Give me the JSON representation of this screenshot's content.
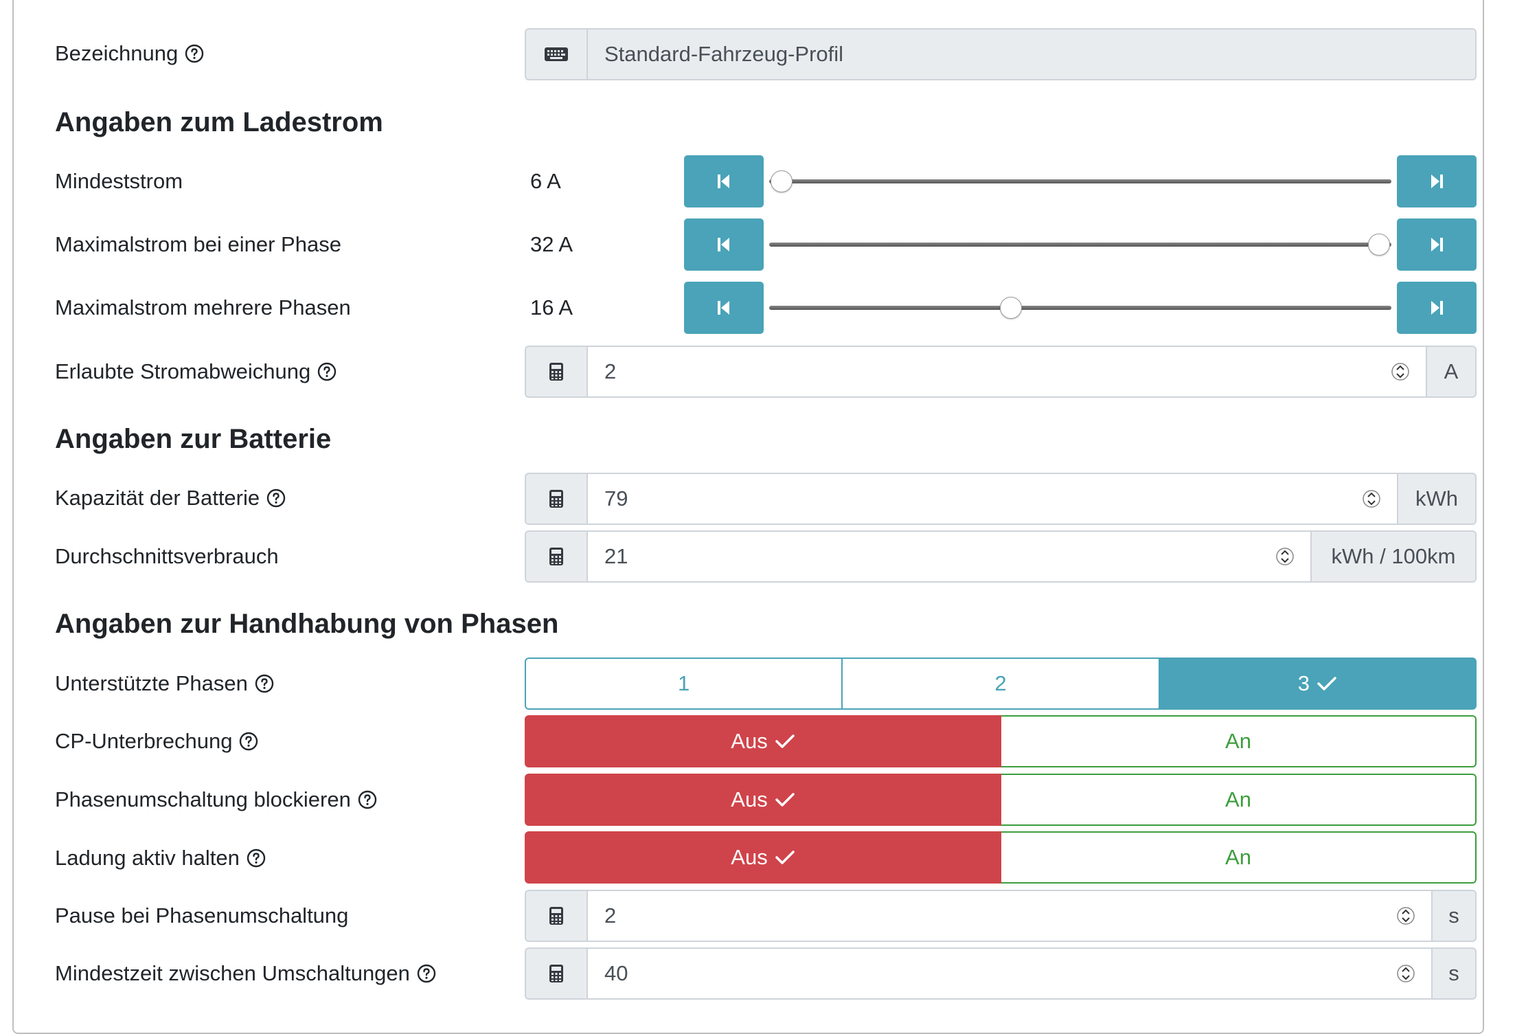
{
  "fields": {
    "name": {
      "label": "Bezeichnung",
      "value": "Standard-Fahrzeug-Profil",
      "icon": "keyboard-icon"
    }
  },
  "sections": {
    "charging": "Angaben zum Ladestrom",
    "battery": "Angaben zur Batterie",
    "phases": "Angaben zur Handhabung von Phasen"
  },
  "charging": {
    "min_current": {
      "label": "Mindeststrom",
      "value_text": "6 A",
      "fraction": 0.0
    },
    "max_current_one_phase": {
      "label": "Maximalstrom bei einer Phase",
      "value_text": "32 A",
      "fraction": 1.0
    },
    "max_current_multi_phase": {
      "label": "Maximalstrom mehrere Phasen",
      "value_text": "16 A",
      "fraction": 0.385
    },
    "allowed_deviation": {
      "label": "Erlaubte Stromabweichung",
      "value": "2",
      "unit": "A"
    }
  },
  "battery": {
    "capacity": {
      "label": "Kapazität der Batterie",
      "value": "79",
      "unit": "kWh"
    },
    "consumption": {
      "label": "Durchschnittsverbrauch",
      "value": "21",
      "unit": "kWh / 100km"
    }
  },
  "phases": {
    "supported": {
      "label": "Unterstützte Phasen",
      "options": [
        "1",
        "2",
        "3"
      ],
      "selected": "3"
    },
    "cp_interrupt": {
      "label": "CP-Unterbrechung",
      "off": "Aus",
      "on": "An",
      "selected": "Aus"
    },
    "block_switch": {
      "label": "Phasenumschaltung blockieren",
      "off": "Aus",
      "on": "An",
      "selected": "Aus"
    },
    "keep_active": {
      "label": "Ladung aktiv halten",
      "off": "Aus",
      "on": "An",
      "selected": "Aus"
    },
    "pause": {
      "label": "Pause bei Phasenumschaltung",
      "value": "2",
      "unit": "s"
    },
    "min_time": {
      "label": "Mindestzeit zwischen Umschaltungen",
      "value": "40",
      "unit": "s"
    }
  },
  "colors": {
    "primary": "#4aa3b8",
    "danger": "#cf444a",
    "success": "#3d9e3d",
    "addon_bg": "#e9ecef"
  }
}
